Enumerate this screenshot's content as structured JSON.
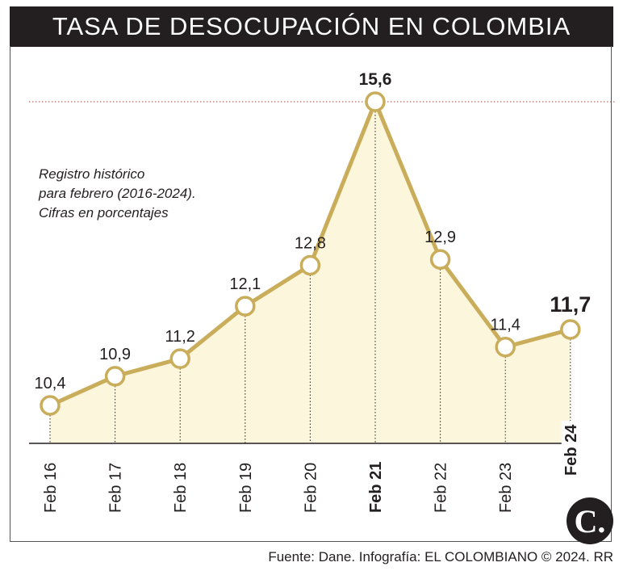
{
  "title": "TASA DE DESOCUPACIÓN EN COLOMBIA",
  "subtitle_lines": [
    "Registro histórico",
    "para febrero (2016-2024).",
    "Cifras en porcentajes"
  ],
  "source": "Fuente: Dane. Infografía: EL COLOMBIANO © 2024. RR",
  "logo_text": "C.",
  "colors": {
    "line": "#c9ad5a",
    "fill": "#fcf6dc",
    "dark": "#231f20",
    "peak_guide": "#a05040"
  },
  "chart_data": {
    "type": "area",
    "categories": [
      "Feb 16",
      "Feb 17",
      "Feb 18",
      "Feb 19",
      "Feb 20",
      "Feb 21",
      "Feb 22",
      "Feb 23",
      "Feb 24"
    ],
    "values": [
      10.4,
      10.9,
      11.2,
      12.1,
      12.8,
      15.6,
      12.9,
      11.4,
      11.7
    ],
    "value_labels": [
      "10,4",
      "10,9",
      "11,2",
      "12,1",
      "12,8",
      "15,6",
      "12,9",
      "11,4",
      "11,7"
    ],
    "bold_categories": [
      "Feb 21",
      "Feb 24"
    ],
    "highlight_values": [
      "15,6",
      "11,7"
    ],
    "ylim": [
      10.0,
      15.6
    ],
    "xlabel": "",
    "ylabel": ""
  }
}
